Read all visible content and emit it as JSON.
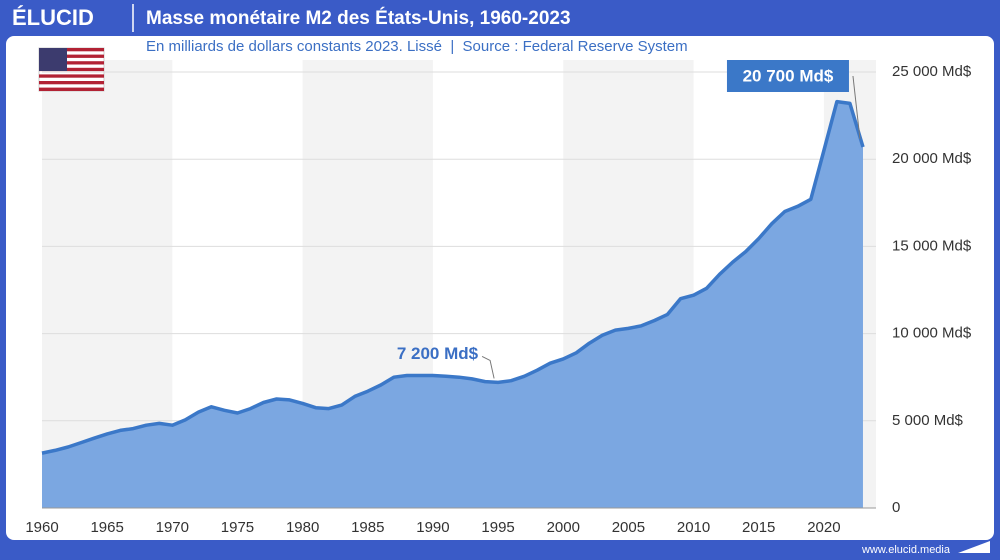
{
  "brand": "ÉLUCID",
  "website": "www.elucid.media",
  "chart_data": {
    "type": "area",
    "title": "Masse monétaire M2 des États-Unis, 1960-2023",
    "subtitle": "En milliards de dollars constants 2023. Lissé  |  Source : Federal Reserve System",
    "x": [
      1960,
      1961,
      1962,
      1963,
      1964,
      1965,
      1966,
      1967,
      1968,
      1969,
      1970,
      1971,
      1972,
      1973,
      1974,
      1975,
      1976,
      1977,
      1978,
      1979,
      1980,
      1981,
      1982,
      1983,
      1984,
      1985,
      1986,
      1987,
      1988,
      1989,
      1990,
      1991,
      1992,
      1993,
      1994,
      1995,
      1996,
      1997,
      1998,
      1999,
      2000,
      2001,
      2002,
      2003,
      2004,
      2005,
      2006,
      2007,
      2008,
      2009,
      2010,
      2011,
      2012,
      2013,
      2014,
      2015,
      2016,
      2017,
      2018,
      2019,
      2020,
      2021,
      2022,
      2023
    ],
    "values": [
      3150,
      3300,
      3500,
      3750,
      4000,
      4250,
      4450,
      4550,
      4750,
      4850,
      4750,
      5050,
      5500,
      5800,
      5600,
      5450,
      5700,
      6050,
      6250,
      6200,
      6000,
      5750,
      5700,
      5900,
      6400,
      6700,
      7050,
      7500,
      7600,
      7600,
      7600,
      7550,
      7500,
      7400,
      7250,
      7200,
      7300,
      7550,
      7900,
      8300,
      8550,
      8900,
      9450,
      9900,
      10200,
      10300,
      10450,
      10750,
      11100,
      12000,
      12200,
      12600,
      13400,
      14100,
      14700,
      15450,
      16300,
      17000,
      17300,
      17700,
      20500,
      23300,
      23200,
      20700
    ],
    "value_labels": [
      null,
      null,
      null,
      null,
      null,
      null,
      null,
      null,
      null,
      null,
      null,
      null,
      null,
      null,
      null,
      null,
      null,
      null,
      null,
      null,
      null,
      null,
      null,
      null,
      null,
      null,
      null,
      null,
      null,
      null,
      null,
      null,
      null,
      null,
      null,
      "7 200 Md$",
      null,
      null,
      null,
      null,
      null,
      null,
      null,
      null,
      null,
      null,
      null,
      null,
      null,
      null,
      null,
      null,
      null,
      null,
      null,
      null,
      null,
      null,
      null,
      null,
      null,
      null,
      null,
      "20 700 Md$"
    ],
    "color": "#7ba7e1",
    "line_color": "#3b78c8",
    "xlim": [
      1960,
      2024
    ],
    "xticks": [
      1960,
      1965,
      1970,
      1975,
      1980,
      1985,
      1990,
      1995,
      2000,
      2005,
      2010,
      2015,
      2020
    ],
    "ylim": [
      0,
      25000
    ],
    "yticks": [
      0,
      {
        "value": 5000,
        "label": "5 000 Md$"
      },
      {
        "value": 10000,
        "label": "10 000 Md$"
      },
      {
        "value": 15000,
        "label": "15 000 Md$"
      },
      {
        "value": 20000,
        "label": "20 000 Md$"
      },
      {
        "value": 25000,
        "label": "25 000 Md$"
      }
    ],
    "grid": true
  }
}
